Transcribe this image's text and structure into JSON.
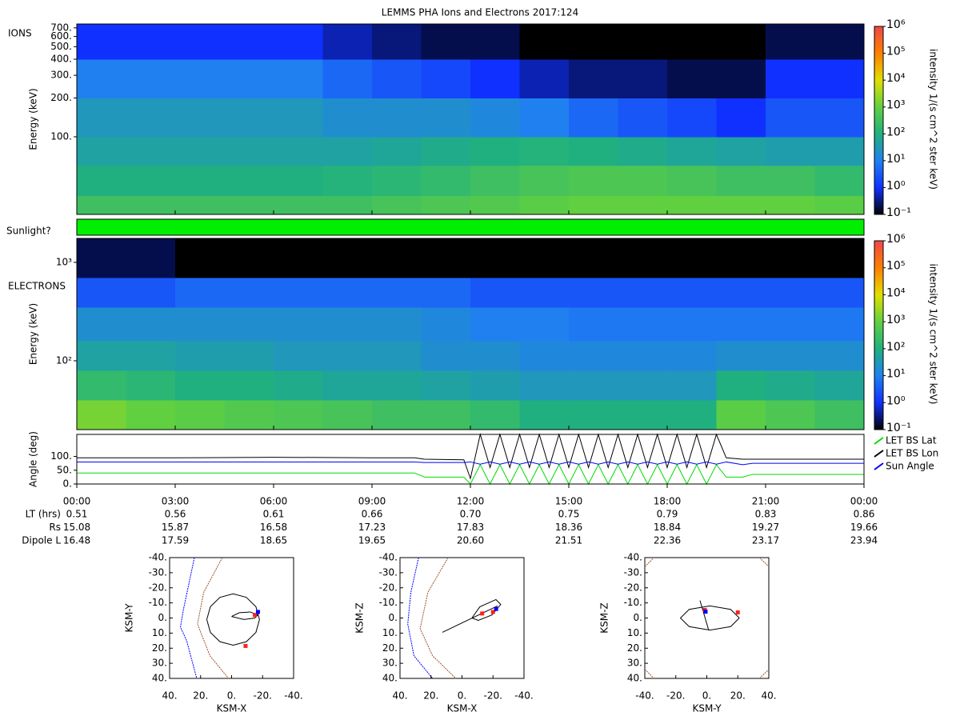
{
  "chart_data": [
    {
      "type": "heatmap",
      "title": "LEMMS PHA Ions and Electrons  2017:124",
      "label": "IONS",
      "ylabel": "Energy (keV)",
      "colorbar_label": "intensity 1/(s cm^2 ster keV)",
      "xlim": [
        0,
        24
      ],
      "ylim": [
        25,
        750
      ],
      "log_y": true,
      "yticks": [
        {
          "value": 100,
          "label": "100."
        },
        {
          "value": 200,
          "label": "200."
        },
        {
          "value": 300,
          "label": "300."
        },
        {
          "value": 400,
          "label": "400."
        },
        {
          "value": 500,
          "label": "500."
        },
        {
          "value": 600,
          "label": "600."
        },
        {
          "value": 700,
          "label": "700."
        }
      ],
      "x_bins": [
        0,
        1.5,
        3,
        4.5,
        6,
        7.5,
        9,
        10.5,
        12,
        13.5,
        15,
        16.5,
        18,
        19.5,
        21,
        22.5,
        24
      ],
      "y_bins": [
        25,
        35,
        60,
        100,
        200,
        400,
        750
      ],
      "values": [
        [
          300,
          300,
          300,
          300,
          300,
          300,
          400,
          500,
          600,
          800,
          1000,
          1000,
          1000,
          1000,
          1000,
          800
        ],
        [
          100,
          100,
          100,
          100,
          100,
          120,
          150,
          200,
          300,
          400,
          500,
          500,
          400,
          300,
          300,
          200
        ],
        [
          50,
          50,
          50,
          50,
          50,
          50,
          60,
          80,
          100,
          120,
          100,
          80,
          60,
          50,
          40,
          40
        ],
        [
          30,
          30,
          30,
          30,
          30,
          20,
          20,
          20,
          15,
          10,
          5,
          3,
          2,
          1,
          3,
          3
        ],
        [
          10,
          10,
          10,
          10,
          10,
          5,
          3,
          2,
          1,
          0.5,
          0.3,
          0.3,
          0.2,
          0.2,
          1,
          1
        ],
        [
          1,
          1,
          1,
          1,
          1,
          0.5,
          0.3,
          0.2,
          0.2,
          0.1,
          0.1,
          0.1,
          0.1,
          0.1,
          0.2,
          0.2
        ]
      ],
      "clim": [
        0.1,
        1000000
      ],
      "cticks": [
        {
          "value": 0.1,
          "label": "10⁻¹"
        },
        {
          "value": 1,
          "label": "10⁰"
        },
        {
          "value": 10,
          "label": "10¹"
        },
        {
          "value": 100,
          "label": "10²"
        },
        {
          "value": 1000,
          "label": "10³"
        },
        {
          "value": 10000,
          "label": "10⁴"
        },
        {
          "value": 100000,
          "label": "10⁵"
        },
        {
          "value": 1000000,
          "label": "10⁶"
        }
      ],
      "colormap": [
        "#000000",
        "#1030ff",
        "#2080f0",
        "#20b080",
        "#60d040",
        "#e0e000",
        "#ff8000",
        "#f04848"
      ]
    },
    {
      "type": "band",
      "label": "Sunlight?",
      "color": "#00ee00"
    },
    {
      "type": "heatmap",
      "label": "ELECTRONS",
      "ylabel": "Energy (keV)",
      "colorbar_label": "intensity 1/(s cm^2 ster keV)",
      "xlim": [
        0,
        24
      ],
      "ylim": [
        20,
        1750
      ],
      "log_y": true,
      "yticks": [
        {
          "value": 100,
          "label": "10²"
        },
        {
          "value": 1000,
          "label": "10³"
        }
      ],
      "x_bins": [
        0,
        1.5,
        3,
        4.5,
        6,
        7.5,
        9,
        10.5,
        12,
        13.5,
        15,
        16.5,
        18,
        19.5,
        21,
        22.5,
        24
      ],
      "y_bins": [
        20,
        40,
        80,
        160,
        350,
        700,
        1750
      ],
      "values": [
        [
          1500,
          1000,
          800,
          600,
          500,
          400,
          300,
          300,
          200,
          100,
          100,
          100,
          100,
          800,
          500,
          300
        ],
        [
          200,
          150,
          100,
          100,
          80,
          60,
          60,
          50,
          40,
          30,
          30,
          30,
          30,
          100,
          80,
          60
        ],
        [
          50,
          50,
          40,
          40,
          30,
          30,
          30,
          20,
          20,
          15,
          15,
          15,
          15,
          20,
          20,
          20
        ],
        [
          20,
          20,
          20,
          20,
          20,
          20,
          20,
          15,
          10,
          10,
          8,
          8,
          8,
          8,
          8,
          8
        ],
        [
          3,
          3,
          5,
          5,
          5,
          5,
          5,
          5,
          3,
          3,
          3,
          3,
          3,
          3,
          3,
          3
        ],
        [
          0.2,
          0.2,
          0.1,
          0.1,
          0.1,
          0.1,
          0.1,
          0.1,
          0.1,
          0.1,
          0.1,
          0.1,
          0.1,
          0.1,
          0.1,
          0.1
        ]
      ],
      "clim": [
        0.1,
        1000000
      ],
      "cticks": [
        {
          "value": 0.1,
          "label": "10⁻¹"
        },
        {
          "value": 1,
          "label": "10⁰"
        },
        {
          "value": 10,
          "label": "10¹"
        },
        {
          "value": 100,
          "label": "10²"
        },
        {
          "value": 1000,
          "label": "10³"
        },
        {
          "value": 10000,
          "label": "10⁴"
        },
        {
          "value": 100000,
          "label": "10⁵"
        },
        {
          "value": 1000000,
          "label": "10⁶"
        }
      ],
      "colormap": [
        "#000000",
        "#1030ff",
        "#2080f0",
        "#20b080",
        "#60d040",
        "#e0e000",
        "#ff8000",
        "#f04848"
      ]
    },
    {
      "type": "line",
      "ylabel": "Angle (deg)",
      "xlim": [
        0,
        24
      ],
      "ylim": [
        0,
        180
      ],
      "xticks": [
        {
          "value": 0,
          "label": "00:00"
        },
        {
          "value": 3,
          "label": "03:00"
        },
        {
          "value": 6,
          "label": "06:00"
        },
        {
          "value": 9,
          "label": "09:00"
        },
        {
          "value": 12,
          "label": "12:00"
        },
        {
          "value": 15,
          "label": "15:00"
        },
        {
          "value": 18,
          "label": "18:00"
        },
        {
          "value": 21,
          "label": "21:00"
        },
        {
          "value": 24,
          "label": "00:00"
        }
      ],
      "yticks": [
        {
          "value": 0,
          "label": "0."
        },
        {
          "value": 50,
          "label": "50."
        },
        {
          "value": 100,
          "label": "100."
        }
      ],
      "x": [
        0,
        3,
        6,
        9,
        10.3,
        10.6,
        11.8,
        12.0,
        12.3,
        12.6,
        12.9,
        13.2,
        13.5,
        13.8,
        14.1,
        14.4,
        14.7,
        15.0,
        15.3,
        15.6,
        15.9,
        16.2,
        16.5,
        16.8,
        17.1,
        17.4,
        17.7,
        18.0,
        18.3,
        18.6,
        18.9,
        19.2,
        19.5,
        19.8,
        20.3,
        20.6,
        24
      ],
      "series": [
        {
          "name": "LET BS Lat",
          "color": "#00dd00",
          "values": [
            40,
            40,
            40,
            40,
            40,
            25,
            25,
            0,
            70,
            0,
            70,
            0,
            70,
            0,
            70,
            0,
            70,
            0,
            70,
            0,
            70,
            0,
            70,
            0,
            70,
            0,
            70,
            0,
            70,
            0,
            70,
            0,
            70,
            25,
            25,
            35,
            35
          ]
        },
        {
          "name": "LET BS Lon",
          "color": "#000000",
          "values": [
            95,
            95,
            97,
            95,
            95,
            90,
            88,
            20,
            180,
            60,
            180,
            60,
            180,
            60,
            180,
            60,
            180,
            60,
            180,
            60,
            180,
            60,
            180,
            60,
            180,
            60,
            180,
            60,
            180,
            60,
            180,
            60,
            180,
            95,
            90,
            90,
            90
          ]
        },
        {
          "name": "Sun Angle",
          "color": "#0000ff",
          "values": [
            80,
            80,
            80,
            80,
            80,
            78,
            78,
            80,
            72,
            80,
            72,
            80,
            72,
            80,
            72,
            80,
            72,
            80,
            72,
            80,
            72,
            80,
            72,
            80,
            72,
            80,
            72,
            80,
            72,
            80,
            72,
            80,
            72,
            80,
            70,
            75,
            75
          ]
        }
      ]
    },
    {
      "type": "orbit",
      "xlabel": "KSM-X",
      "ylabel": "KSM-Y",
      "xlim": [
        40,
        -40
      ],
      "ylim": [
        40,
        -40
      ],
      "xticks": [
        {
          "value": 40,
          "label": "40."
        },
        {
          "value": 20,
          "label": "20."
        },
        {
          "value": 0,
          "label": "0."
        },
        {
          "value": -20,
          "label": "-20."
        },
        {
          "value": -40,
          "label": "-40."
        }
      ],
      "yticks": [
        {
          "value": -40,
          "label": "-40."
        },
        {
          "value": -30,
          "label": "-30."
        },
        {
          "value": -20,
          "label": "-20."
        },
        {
          "value": -10,
          "label": "-10."
        },
        {
          "value": 0,
          "label": "0."
        },
        {
          "value": 10,
          "label": "10."
        },
        {
          "value": 20,
          "label": "20."
        },
        {
          "value": 30,
          "label": "30."
        },
        {
          "value": 40,
          "label": "40."
        }
      ],
      "series": [
        {
          "color": "#a0522d",
          "x": [
            6,
            18,
            22,
            14,
            2
          ],
          "y": [
            -40,
            -17,
            4,
            25,
            40
          ]
        },
        {
          "color": "#0000ff",
          "x": [
            24,
            31,
            33,
            29,
            22.5
          ],
          "y": [
            -40,
            -6,
            6,
            15,
            40
          ]
        },
        {
          "color": "#000000",
          "x": [
            16,
            13.7,
            7.5,
            -1,
            -9.5,
            -15.7,
            -18,
            -15.7,
            -9.5,
            -1,
            7.5,
            13.7,
            16
          ],
          "y": [
            1,
            9.5,
            15.7,
            18,
            15.7,
            9.5,
            1,
            -7.5,
            -13.7,
            -16,
            -13.7,
            -7.5,
            1
          ]
        },
        {
          "color": "#000000",
          "x": [
            0,
            -5,
            -12,
            -17,
            -15,
            -8,
            0
          ],
          "y": [
            -1,
            -3.5,
            -4,
            -2,
            0,
            1,
            -1
          ]
        }
      ],
      "points": [
        {
          "color": "#ff2020",
          "x": [
            -9,
            -15
          ],
          "y": [
            18.5,
            -2
          ]
        },
        {
          "color": "#0000ff",
          "x": [
            -17
          ],
          "y": [
            -4
          ]
        }
      ]
    },
    {
      "type": "orbit",
      "xlabel": "KSM-X",
      "ylabel": "KSM-Z",
      "xlim": [
        40,
        -40
      ],
      "ylim": [
        40,
        -40
      ],
      "xticks": [
        {
          "value": 40,
          "label": "40."
        },
        {
          "value": 20,
          "label": "20."
        },
        {
          "value": 0,
          "label": "0."
        },
        {
          "value": -20,
          "label": "-20."
        },
        {
          "value": -40,
          "label": "-40."
        }
      ],
      "yticks": [
        {
          "value": -40,
          "label": "-40."
        },
        {
          "value": -30,
          "label": "-30."
        },
        {
          "value": -20,
          "label": "-20."
        },
        {
          "value": -10,
          "label": "-10."
        },
        {
          "value": 0,
          "label": "0."
        },
        {
          "value": 10,
          "label": "10."
        },
        {
          "value": 20,
          "label": "20."
        },
        {
          "value": 30,
          "label": "30."
        },
        {
          "value": 40,
          "label": "40."
        }
      ],
      "series": [
        {
          "color": "#a0522d",
          "x": [
            9,
            22,
            27,
            19,
            4
          ],
          "y": [
            -40,
            -17,
            7,
            25,
            40
          ]
        },
        {
          "color": "#0000ff",
          "x": [
            28,
            33,
            35,
            31,
            19
          ],
          "y": [
            -40,
            -17,
            4,
            25,
            40
          ]
        },
        {
          "color": "#000000",
          "x": [
            -6.4,
            -11.5,
            -21.9,
            -25,
            -19.3,
            -10.5,
            -6.4
          ],
          "y": [
            0,
            -7.4,
            -12.2,
            -9,
            -2,
            1.6,
            0
          ]
        },
        {
          "color": "#000000",
          "x": [
            12.7,
            -22.9
          ],
          "y": [
            9.5,
            -8
          ]
        }
      ],
      "points": [
        {
          "color": "#ff2020",
          "x": [
            -13,
            -20
          ],
          "y": [
            -3,
            -4
          ]
        },
        {
          "color": "#0000ff",
          "x": [
            -22
          ],
          "y": [
            -6
          ]
        }
      ]
    },
    {
      "type": "orbit",
      "xlabel": "KSM-Y",
      "ylabel": "KSM-Z",
      "xlim": [
        -40,
        40
      ],
      "ylim": [
        40,
        -40
      ],
      "xticks": [
        {
          "value": -40,
          "label": "-40."
        },
        {
          "value": -20,
          "label": "-20."
        },
        {
          "value": 0,
          "label": "0."
        },
        {
          "value": 20,
          "label": "20."
        },
        {
          "value": 40,
          "label": "40."
        }
      ],
      "yticks": [
        {
          "value": -40,
          "label": "-40."
        },
        {
          "value": -30,
          "label": "-30."
        },
        {
          "value": -20,
          "label": "-20."
        },
        {
          "value": -10,
          "label": "-10."
        },
        {
          "value": 0,
          "label": "0."
        },
        {
          "value": 10,
          "label": "10."
        },
        {
          "value": 20,
          "label": "20."
        },
        {
          "value": 30,
          "label": "30."
        },
        {
          "value": 40,
          "label": "40."
        }
      ],
      "series": [
        {
          "color": "#a0522d",
          "x": [
            -40,
            -34,
            null,
            34,
            40,
            null,
            -40,
            -34,
            null,
            34,
            40
          ],
          "y": [
            -34,
            -40,
            null,
            -40,
            -34,
            null,
            34,
            40,
            null,
            40,
            34
          ]
        },
        {
          "color": "#000000",
          "x": [
            21,
            15.4,
            2,
            -11.4,
            -17,
            -11.4,
            2,
            15.4,
            21
          ],
          "y": [
            0,
            5.7,
            8,
            5.7,
            0,
            -5.7,
            -8,
            -5.7,
            0
          ]
        },
        {
          "color": "#000000",
          "x": [
            -4.4,
            1.2
          ],
          "y": [
            -11.6,
            8
          ]
        }
      ],
      "points": [
        {
          "color": "#ff2020",
          "x": [
            20,
            -1.3
          ],
          "y": [
            -3.7,
            -5.3
          ]
        },
        {
          "color": "#0000ff",
          "x": [
            -0.8
          ],
          "y": [
            -4.2
          ]
        }
      ]
    }
  ],
  "ephemeris": {
    "rows": [
      {
        "label": "LT (hrs)",
        "values": [
          "0.51",
          "0.56",
          "0.61",
          "0.66",
          "0.70",
          "0.75",
          "0.79",
          "0.83",
          "0.86"
        ]
      },
      {
        "label": "Rs",
        "values": [
          "15.08",
          "15.87",
          "16.58",
          "17.23",
          "17.83",
          "18.36",
          "18.84",
          "19.27",
          "19.66"
        ]
      },
      {
        "label": "Dipole L",
        "values": [
          "16.48",
          "17.59",
          "18.65",
          "19.65",
          "20.60",
          "21.51",
          "22.36",
          "23.17",
          "23.94"
        ]
      }
    ]
  }
}
